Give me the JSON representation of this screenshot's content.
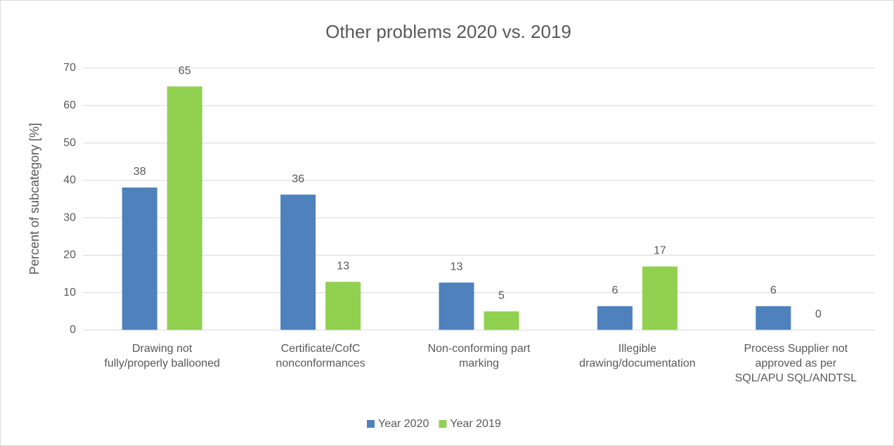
{
  "chart_data": {
    "type": "bar",
    "title": "Other problems 2020 vs. 2019",
    "y_label": "Percent of subcategory [%]",
    "categories": [
      "Drawing not\nfully/properly ballooned",
      "Certificate/CofC\nnonconformances",
      "Non-conforming part\nmarking",
      "Illegible\ndrawing/documentation",
      "Process Supplier not\napproved as per\nSQL/APU SQL/ANDTSL"
    ],
    "series": [
      {
        "name": "Year 2020",
        "color": "#4f81bd",
        "values": [
          38.1,
          36.2,
          12.7,
          6.4,
          6.4
        ],
        "value_labels": [
          "38",
          "36",
          "13",
          "6",
          "6"
        ]
      },
      {
        "name": "Year 2019",
        "color": "#92d050",
        "values": [
          65.1,
          12.9,
          5.0,
          17.0,
          0
        ],
        "value_labels": [
          "65",
          "13",
          "5",
          "17",
          "0"
        ]
      }
    ],
    "ylim": [
      0,
      70
    ],
    "yticks": [
      0,
      10,
      20,
      30,
      40,
      50,
      60,
      70
    ],
    "grid": true,
    "legend": "bottom"
  }
}
